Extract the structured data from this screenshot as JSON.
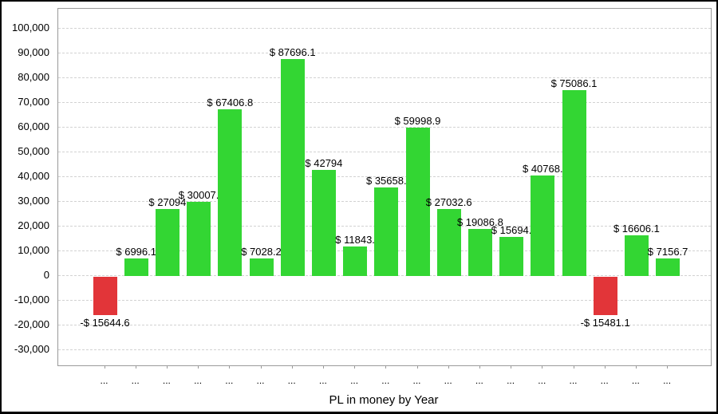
{
  "chart_data": {
    "type": "bar",
    "title": "",
    "xlabel": "PL in money by Year",
    "ylabel": "",
    "categories": [
      "...",
      "...",
      "...",
      "...",
      "...",
      "...",
      "...",
      "...",
      "...",
      "...",
      "...",
      "...",
      "...",
      "...",
      "...",
      "...",
      "...",
      "...",
      "..."
    ],
    "values": [
      -15644.6,
      6996.1,
      27094,
      30007,
      67406.8,
      7028.2,
      87696.1,
      42794,
      11843,
      35658,
      59998.9,
      27032.6,
      19086.8,
      15694,
      40768,
      75086.1,
      -15481.1,
      16606.1,
      7156.7
    ],
    "bar_labels": [
      "-$ 15644.6",
      "$ 6996.1",
      "$ 27094",
      "$ 30007.",
      "$ 67406.8",
      "$ 7028.2",
      "$ 87696.1",
      "$ 42794",
      "$ 11843.",
      "$ 35658.",
      "$ 59998.9",
      "$ 27032.6",
      "$ 19086.8",
      "$ 15694.",
      "$ 40768.",
      "$ 75086.1",
      "-$ 15481.1",
      "$ 16606.1",
      "$ 7156.7"
    ],
    "ytick_values": [
      100000,
      90000,
      80000,
      70000,
      60000,
      50000,
      40000,
      30000,
      20000,
      10000,
      0,
      -10000,
      -20000,
      -30000
    ],
    "ytick_labels": [
      "100,000",
      "90,000",
      "80,000",
      "70,000",
      "60,000",
      "50,000",
      "40,000",
      "30,000",
      "20,000",
      "10,000",
      "0",
      "-10,000",
      "-20,000",
      "-30,000"
    ],
    "ylim": [
      -37000,
      108000
    ],
    "grid": "horizontal-dashed",
    "legend": "none",
    "colors": {
      "positive_bar": "#33d633",
      "negative_bar": "#e23539",
      "grid_line": "#d2d2d2",
      "axis_border": "#9a9a9a",
      "tick": "#9a9a9a",
      "text": "#000000",
      "background": "#ffffff",
      "frame": "#000000"
    }
  }
}
